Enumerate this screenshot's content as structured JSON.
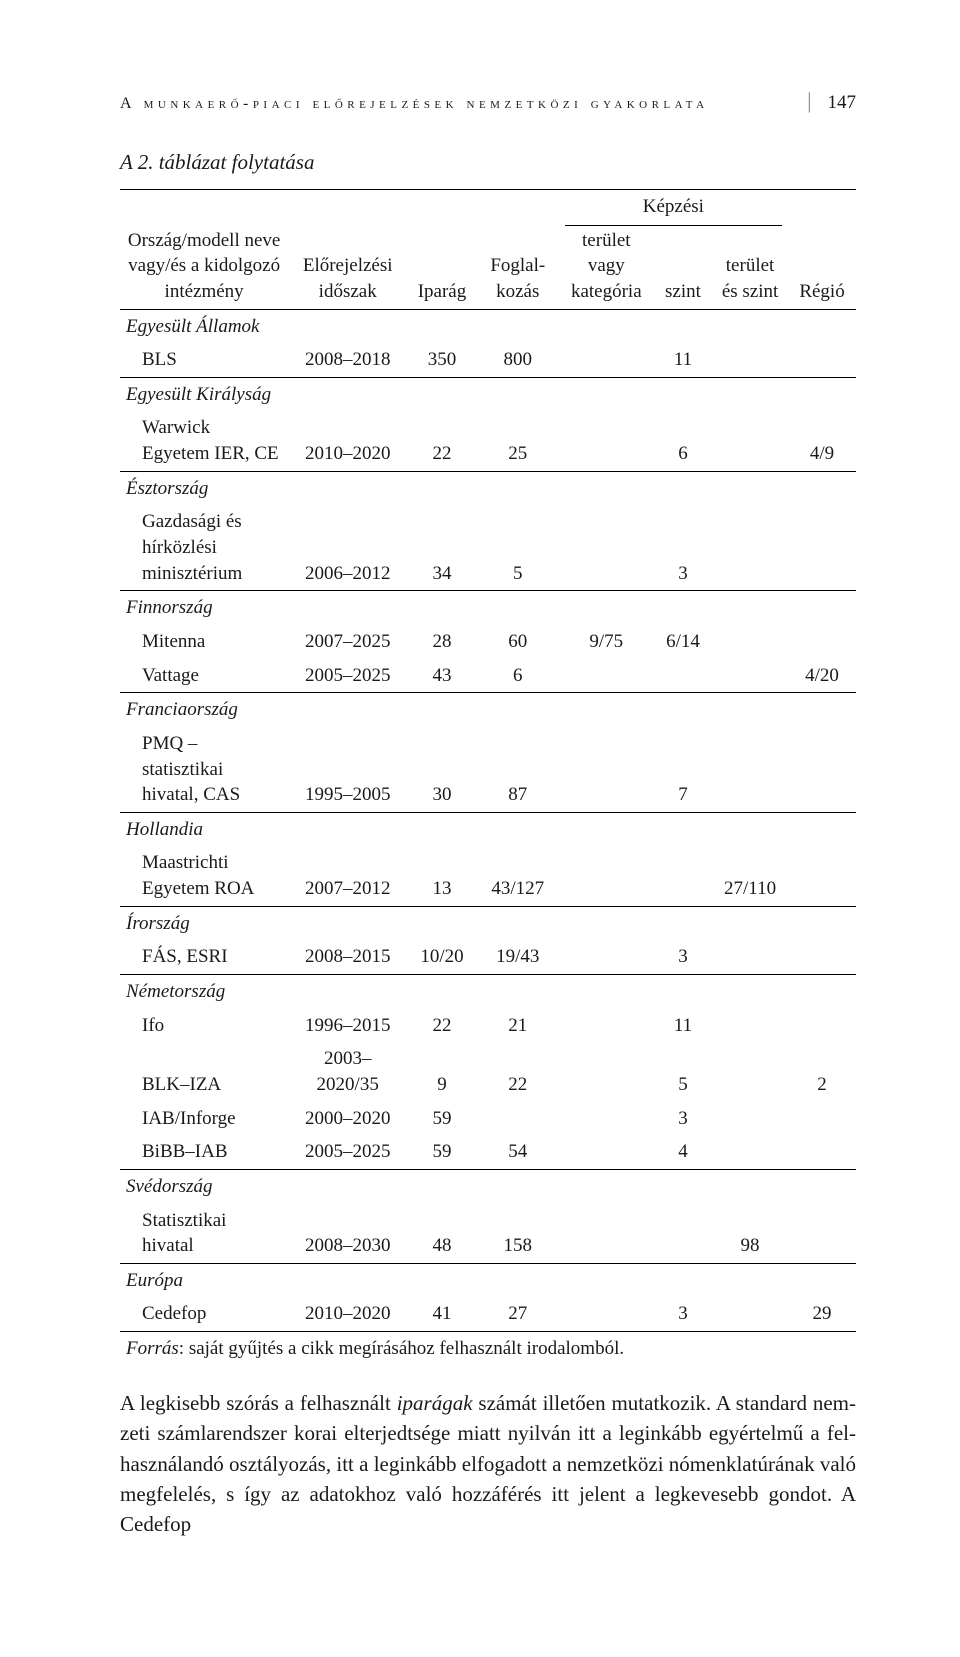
{
  "running_head": {
    "title": "A munkaerő-piaci előrejelzések nemzetközi gyakorlata",
    "page_number": "147"
  },
  "caption": "A 2. táblázat folytatása",
  "header": {
    "col1": "Ország/modell neve vagy/és a kidolgozó intézmény",
    "period": "Előrejelzési időszak",
    "industry": "Iparág",
    "occupation": "Foglal-\nkozás",
    "training_group": "Képzési",
    "area_or_cat": "terület vagy kategória",
    "level": "szint",
    "area_and_level": "terület és szint",
    "region": "Régió"
  },
  "sections": [
    {
      "title": "Egyesült Államok",
      "rows": [
        {
          "name": "BLS",
          "period": "2008–2018",
          "industry": "350",
          "occupation": "800",
          "area": "",
          "level": "11",
          "areaLevel": "",
          "region": ""
        }
      ]
    },
    {
      "title": "Egyesült Királyság",
      "rows": [
        {
          "name": "Warwick Egyetem IER, CE",
          "period": "2010–2020",
          "industry": "22",
          "occupation": "25",
          "area": "",
          "level": "6",
          "areaLevel": "",
          "region": "4/9"
        }
      ]
    },
    {
      "title": "Észtország",
      "rows": [
        {
          "name": "Gazdasági és hírközlési minisztérium",
          "period": "2006–2012",
          "industry": "34",
          "occupation": "5",
          "area": "",
          "level": "3",
          "areaLevel": "",
          "region": ""
        }
      ]
    },
    {
      "title": "Finnország",
      "rows": [
        {
          "name": "Mitenna",
          "period": "2007–2025",
          "industry": "28",
          "occupation": "60",
          "area": "9/75",
          "level": "6/14",
          "areaLevel": "",
          "region": ""
        },
        {
          "name": "Vattage",
          "period": "2005–2025",
          "industry": "43",
          "occupation": "6",
          "area": "",
          "level": "",
          "areaLevel": "",
          "region": "4/20"
        }
      ]
    },
    {
      "title": "Franciaország",
      "rows": [
        {
          "name": "PMQ – statisztikai hivatal, CAS",
          "period": "1995–2005",
          "industry": "30",
          "occupation": "87",
          "area": "",
          "level": "7",
          "areaLevel": "",
          "region": ""
        }
      ]
    },
    {
      "title": "Hollandia",
      "rows": [
        {
          "name": "Maastrichti Egyetem ROA",
          "period": "2007–2012",
          "industry": "13",
          "occupation": "43/127",
          "area": "",
          "level": "",
          "areaLevel": "27/110",
          "region": ""
        }
      ]
    },
    {
      "title": "Írország",
      "rows": [
        {
          "name": "FÁS, ESRI",
          "period": "2008–2015",
          "industry": "10/20",
          "occupation": "19/43",
          "area": "",
          "level": "3",
          "areaLevel": "",
          "region": ""
        }
      ]
    },
    {
      "title": "Németország",
      "rows": [
        {
          "name": "Ifo",
          "period": "1996–2015",
          "industry": "22",
          "occupation": "21",
          "area": "",
          "level": "11",
          "areaLevel": "",
          "region": ""
        },
        {
          "name": "BLK–IZA",
          "period": "2003–2020/35",
          "industry": "9",
          "occupation": "22",
          "area": "",
          "level": "5",
          "areaLevel": "",
          "region": "2"
        },
        {
          "name": "IAB/Inforge",
          "period": "2000–2020",
          "industry": "59",
          "occupation": "",
          "area": "",
          "level": "3",
          "areaLevel": "",
          "region": ""
        },
        {
          "name": "BiBB–IAB",
          "period": "2005–2025",
          "industry": "59",
          "occupation": "54",
          "area": "",
          "level": "4",
          "areaLevel": "",
          "region": ""
        }
      ]
    },
    {
      "title": "Svédország",
      "rows": [
        {
          "name": "Statisztikai hivatal",
          "period": "2008–2030",
          "industry": "48",
          "occupation": "158",
          "area": "",
          "level": "",
          "areaLevel": "98",
          "region": ""
        }
      ]
    },
    {
      "title": "Európa",
      "rows": [
        {
          "name": "Cedefop",
          "period": "2010–2020",
          "industry": "41",
          "occupation": "27",
          "area": "",
          "level": "3",
          "areaLevel": "",
          "region": "29"
        }
      ]
    }
  ],
  "source": {
    "label": "Forrás",
    "text": ": saját gyűjtés a cikk megírásához felhasznált irodalomból."
  },
  "body": {
    "p1_a": "A legkisebb szórás a felhasznált ",
    "p1_ital": "iparágak",
    "p1_b": " számát illetően mutatkozik. A standard nem­zeti számlarendszer korai elterjedtsége miatt nyilván itt a leginkább egyértelmű a fel­használandó osztályozás, itt a leginkább elfogadott a nemzetközi nómenklatúrának való megfelelés, s így az adatokhoz való hozzáférés itt jelent a legkevesebb gondot. A Cedefop"
  },
  "colors": {
    "text": "#1a1a1a",
    "rule": "#000000",
    "background": "#ffffff",
    "sep": "#888888"
  }
}
